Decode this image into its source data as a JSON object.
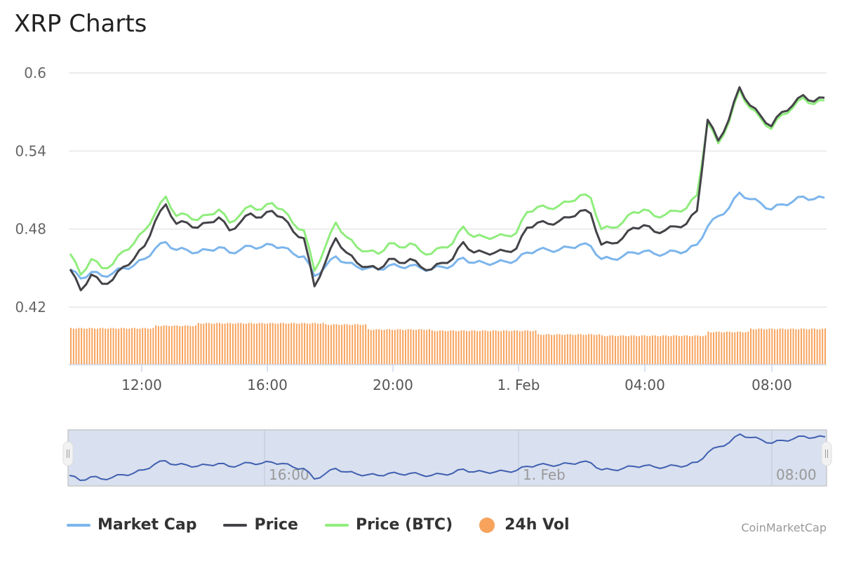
{
  "title": "XRP Charts",
  "credit": "CoinMarketCap",
  "chart_data": {
    "type": "line",
    "y_ticks": [
      "0.42",
      "0.48",
      "0.54",
      "0.6"
    ],
    "ylim": [
      0.42,
      0.6
    ],
    "x_ticks": [
      "12:00",
      "16:00",
      "20:00",
      "1. Feb",
      "04:00",
      "08:00"
    ],
    "grid": true,
    "legend": "bottom",
    "series": [
      {
        "name": "Market Cap",
        "color": "#7cb5ec",
        "values": [
          0.449,
          0.442,
          0.447,
          0.444,
          0.446,
          0.45,
          0.452,
          0.457,
          0.465,
          0.47,
          0.464,
          0.464,
          0.462,
          0.464,
          0.466,
          0.462,
          0.464,
          0.467,
          0.466,
          0.468,
          0.466,
          0.461,
          0.459,
          0.444,
          0.451,
          0.459,
          0.454,
          0.451,
          0.45,
          0.449,
          0.452,
          0.451,
          0.452,
          0.45,
          0.449,
          0.451,
          0.452,
          0.458,
          0.454,
          0.454,
          0.454,
          0.455,
          0.456,
          0.462,
          0.464,
          0.464,
          0.464,
          0.466,
          0.468,
          0.467,
          0.457,
          0.457,
          0.459,
          0.462,
          0.463,
          0.461,
          0.461,
          0.463,
          0.463,
          0.468,
          0.482,
          0.49,
          0.496,
          0.508,
          0.503,
          0.5,
          0.495,
          0.499,
          0.501,
          0.505,
          0.503,
          0.504
        ]
      },
      {
        "name": "Price",
        "color": "#434348",
        "values": [
          0.449,
          0.433,
          0.445,
          0.438,
          0.441,
          0.451,
          0.457,
          0.467,
          0.486,
          0.499,
          0.484,
          0.485,
          0.481,
          0.485,
          0.489,
          0.479,
          0.485,
          0.492,
          0.489,
          0.494,
          0.489,
          0.478,
          0.473,
          0.436,
          0.454,
          0.473,
          0.462,
          0.454,
          0.451,
          0.449,
          0.457,
          0.454,
          0.457,
          0.451,
          0.449,
          0.454,
          0.457,
          0.47,
          0.462,
          0.462,
          0.462,
          0.463,
          0.465,
          0.481,
          0.485,
          0.484,
          0.486,
          0.489,
          0.494,
          0.492,
          0.468,
          0.469,
          0.473,
          0.481,
          0.483,
          0.478,
          0.479,
          0.482,
          0.484,
          0.494,
          0.564,
          0.548,
          0.564,
          0.589,
          0.575,
          0.567,
          0.559,
          0.57,
          0.575,
          0.583,
          0.578,
          0.581
        ]
      },
      {
        "name": "Price (BTC)",
        "color": "#90ed7d",
        "values": [
          0.461,
          0.445,
          0.457,
          0.45,
          0.453,
          0.463,
          0.469,
          0.479,
          0.492,
          0.505,
          0.49,
          0.491,
          0.487,
          0.491,
          0.495,
          0.485,
          0.491,
          0.498,
          0.495,
          0.5,
          0.495,
          0.484,
          0.479,
          0.448,
          0.466,
          0.485,
          0.474,
          0.466,
          0.463,
          0.461,
          0.469,
          0.466,
          0.469,
          0.463,
          0.461,
          0.466,
          0.469,
          0.482,
          0.474,
          0.474,
          0.474,
          0.475,
          0.477,
          0.493,
          0.497,
          0.496,
          0.498,
          0.501,
          0.506,
          0.504,
          0.48,
          0.481,
          0.485,
          0.493,
          0.495,
          0.49,
          0.491,
          0.494,
          0.496,
          0.506,
          0.562,
          0.546,
          0.562,
          0.587,
          0.573,
          0.565,
          0.557,
          0.568,
          0.573,
          0.581,
          0.576,
          0.579
        ]
      }
    ],
    "volume": {
      "name": "24h Vol",
      "color": "#f7a35c",
      "relative_values": [
        58,
        58,
        58,
        58,
        58,
        58,
        58,
        58,
        62,
        62,
        62,
        62,
        66,
        66,
        66,
        66,
        66,
        66,
        66,
        66,
        66,
        66,
        66,
        66,
        64,
        64,
        64,
        64,
        56,
        56,
        56,
        56,
        56,
        56,
        54,
        54,
        54,
        54,
        54,
        54,
        54,
        54,
        54,
        54,
        48,
        48,
        48,
        48,
        48,
        48,
        46,
        46,
        46,
        46,
        46,
        46,
        46,
        46,
        46,
        46,
        52,
        52,
        52,
        52,
        57,
        57,
        57,
        57,
        57,
        57,
        57,
        57
      ]
    },
    "navigator": {
      "x_ticks": [
        "16:00",
        "1. Feb",
        "08:00"
      ]
    }
  }
}
